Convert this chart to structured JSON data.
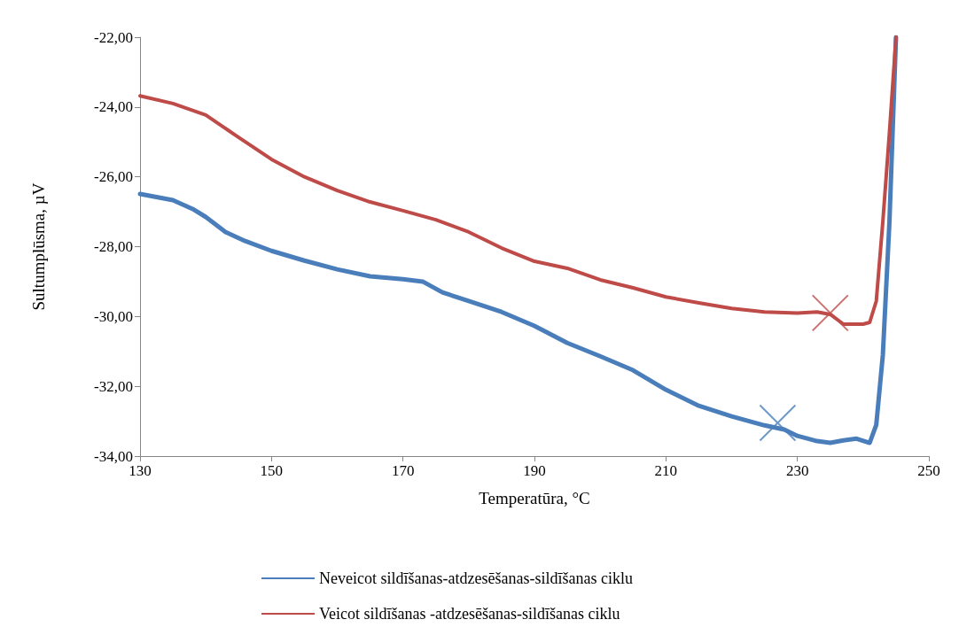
{
  "chart_data": {
    "type": "line",
    "xlabel": "Temperatūra, °C",
    "ylabel": "Sultumplūsma, µV",
    "xlim": [
      130,
      250
    ],
    "xticks": [
      130,
      150,
      170,
      190,
      210,
      230,
      250
    ],
    "ylim": [
      -34,
      -22
    ],
    "yticks": [
      {
        "value": -34,
        "label": "-34,00"
      },
      {
        "value": -32,
        "label": "-32,00"
      },
      {
        "value": -30,
        "label": "-30,00"
      },
      {
        "value": -28,
        "label": "-28,00"
      },
      {
        "value": -26,
        "label": "-26,00"
      },
      {
        "value": -24,
        "label": "-24,00"
      },
      {
        "value": -22,
        "label": "-22,00"
      }
    ],
    "grid": false,
    "legend": "bottom",
    "marker": "none",
    "line_style": "solid",
    "series": [
      {
        "name": "Neveicot sildīšanas-atdzesēšanas-sildīšanas ciklu",
        "color": "#4a7ebb",
        "x": [
          130,
          135,
          138,
          140,
          143,
          146,
          150,
          155,
          160,
          165,
          170,
          173,
          176,
          180,
          185,
          190,
          195,
          200,
          205,
          210,
          215,
          220,
          225,
          228,
          230,
          233,
          235,
          237,
          239,
          241,
          242,
          243,
          244,
          245
        ],
        "values": [
          -26.49,
          -26.67,
          -26.92,
          -27.15,
          -27.58,
          -27.84,
          -28.12,
          -28.4,
          -28.65,
          -28.85,
          -28.93,
          -29.0,
          -29.31,
          -29.56,
          -29.87,
          -30.27,
          -30.76,
          -31.14,
          -31.54,
          -32.1,
          -32.56,
          -32.86,
          -33.12,
          -33.24,
          -33.42,
          -33.57,
          -33.62,
          -33.55,
          -33.5,
          -33.62,
          -33.1,
          -31.1,
          -27.3,
          -22.0
        ]
      },
      {
        "name": "Veicot sildīšanas -atdzesēšanas-sildīšanas ciklu",
        "color": "#be4b48",
        "x": [
          130,
          135,
          140,
          145,
          150,
          155,
          160,
          165,
          170,
          175,
          180,
          185,
          190,
          195,
          200,
          205,
          210,
          215,
          220,
          225,
          230,
          233,
          235,
          237,
          240,
          241,
          242,
          243,
          244,
          245
        ],
        "values": [
          -23.68,
          -23.9,
          -24.23,
          -24.87,
          -25.5,
          -26.0,
          -26.39,
          -26.72,
          -26.97,
          -27.23,
          -27.58,
          -28.04,
          -28.42,
          -28.62,
          -28.95,
          -29.18,
          -29.44,
          -29.61,
          -29.77,
          -29.87,
          -29.9,
          -29.87,
          -29.94,
          -30.22,
          -30.22,
          -30.17,
          -29.56,
          -27.28,
          -24.74,
          -22.0
        ]
      },
      {
        "type": "scatter",
        "marker": "cross",
        "color": "#4a7ebb",
        "x": [
          227
        ],
        "values": [
          -33.05
        ]
      },
      {
        "type": "scatter",
        "marker": "cross",
        "color": "#be4b48",
        "x": [
          235
        ],
        "values": [
          -29.9
        ]
      }
    ]
  }
}
